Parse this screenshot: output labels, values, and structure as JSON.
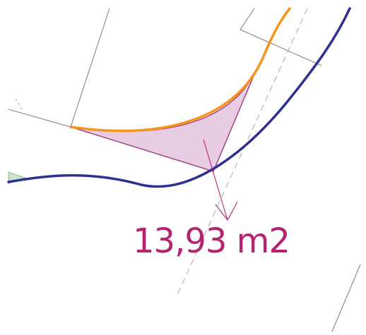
{
  "annotation": {
    "area_label": "13,93 m2"
  },
  "colors": {
    "background": "#ffffff",
    "orange_curve": "#f7941d",
    "blue_curve": "#2e3192",
    "area_fill": "#e6c6e1",
    "area_stroke": "#9e3a7e",
    "label_color": "#b5236f",
    "lot_line": "#8c8282",
    "dashed_line": "#a8a8a8",
    "green_fill": "#c9e3cf"
  }
}
